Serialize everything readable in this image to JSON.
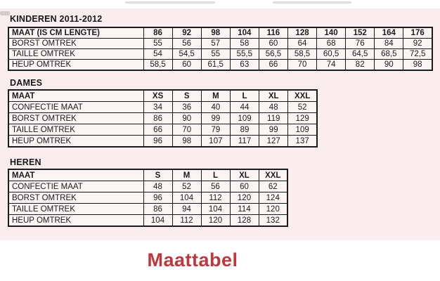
{
  "footer": {
    "title": "Maattabel",
    "title_color": "#bf363c"
  },
  "colors": {
    "panel_background": "#f9edef",
    "cell_background": "#fcf3f4",
    "border": "#1b1b1b"
  },
  "sections": [
    {
      "title": "KINDEREN 2011-2012",
      "label_header": "MAAT (IS CM LENGTE)",
      "columns": [
        "86",
        "92",
        "98",
        "104",
        "116",
        "128",
        "140",
        "152",
        "164",
        "176"
      ],
      "rows": [
        {
          "label": "BORST OMTREK",
          "values": [
            "55",
            "56",
            "57",
            "58",
            "60",
            "64",
            "68",
            "76",
            "84",
            "92"
          ]
        },
        {
          "label": "TAILLE OMTREK",
          "values": [
            "54",
            "54,5",
            "55",
            "55,5",
            "56,5",
            "58,5",
            "60,5",
            "64,5",
            "68,5",
            "72,5"
          ]
        },
        {
          "label": "HEUP OMTREK",
          "values": [
            "58,5",
            "60",
            "61,5",
            "63",
            "66",
            "70",
            "74",
            "82",
            "90",
            "98"
          ]
        }
      ]
    },
    {
      "title": "DAMES",
      "label_header": "MAAT",
      "columns": [
        "XS",
        "S",
        "M",
        "L",
        "XL",
        "XXL"
      ],
      "rows": [
        {
          "label": "CONFECTIE MAAT",
          "values": [
            "34",
            "36",
            "40",
            "44",
            "48",
            "52"
          ]
        },
        {
          "label": "BORST OMTREK",
          "values": [
            "86",
            "90",
            "99",
            "109",
            "119",
            "129"
          ]
        },
        {
          "label": "TAILLE OMTREK",
          "values": [
            "66",
            "70",
            "79",
            "89",
            "99",
            "109"
          ]
        },
        {
          "label": "HEUP OMTREK",
          "values": [
            "96",
            "98",
            "107",
            "117",
            "127",
            "137"
          ]
        }
      ]
    },
    {
      "title": "HEREN",
      "label_header": "MAAT",
      "columns": [
        "S",
        "M",
        "L",
        "XL",
        "XXL"
      ],
      "rows": [
        {
          "label": "CONFECTIE MAAT",
          "values": [
            "48",
            "52",
            "56",
            "60",
            "62"
          ]
        },
        {
          "label": "BORST OMTREK",
          "values": [
            "96",
            "104",
            "112",
            "120",
            "124"
          ]
        },
        {
          "label": "TAILLE OMTREK",
          "values": [
            "86",
            "94",
            "104",
            "114",
            "120"
          ]
        },
        {
          "label": "HEUP OMTREK",
          "values": [
            "104",
            "112",
            "120",
            "128",
            "132"
          ]
        }
      ]
    }
  ]
}
